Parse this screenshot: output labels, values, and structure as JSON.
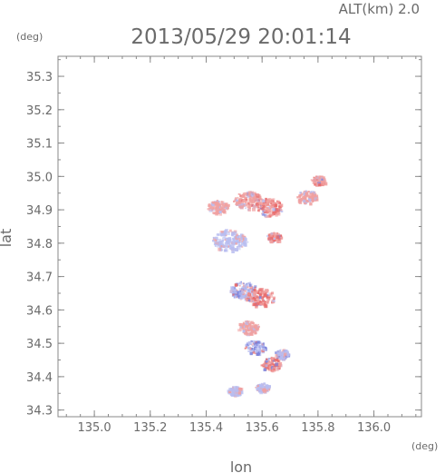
{
  "chart_data": {
    "type": "scatter",
    "title": "2013/05/29 20:01:14",
    "subtitle": "ALT(km) 2.0",
    "xlabel": "lon",
    "ylabel": "lat",
    "x_unit": "(deg)",
    "y_unit": "(deg)",
    "xlim": [
      134.87,
      136.17
    ],
    "ylim": [
      34.28,
      35.36
    ],
    "xticks": [
      "135.0",
      "135.2",
      "135.4",
      "135.6",
      "135.8",
      "136.0"
    ],
    "yticks": [
      "34.3",
      "34.4",
      "34.5",
      "34.6",
      "34.7",
      "34.8",
      "34.9",
      "35.0",
      "35.1",
      "35.2",
      "35.3"
    ],
    "grid": false,
    "colors": {
      "positive": "#f0a0a0",
      "negative": "#b8bdf0",
      "strong_positive": "#e86a6a",
      "strong_negative": "#7c84dc"
    },
    "clusters": [
      {
        "lon": 135.48,
        "lat": 34.81,
        "value": -0.6,
        "spread": 0.05
      },
      {
        "lon": 135.44,
        "lat": 34.91,
        "value": 0.3,
        "spread": 0.03
      },
      {
        "lon": 135.55,
        "lat": 34.93,
        "value": 0.7,
        "spread": 0.04
      },
      {
        "lon": 135.62,
        "lat": 34.91,
        "value": 0.8,
        "spread": 0.04
      },
      {
        "lon": 135.76,
        "lat": 34.94,
        "value": 0.6,
        "spread": 0.03
      },
      {
        "lon": 135.8,
        "lat": 34.99,
        "value": 0.7,
        "spread": 0.02
      },
      {
        "lon": 135.64,
        "lat": 34.82,
        "value": 0.9,
        "spread": 0.02
      },
      {
        "lon": 135.53,
        "lat": 34.66,
        "value": -0.8,
        "spread": 0.04
      },
      {
        "lon": 135.59,
        "lat": 34.64,
        "value": 0.9,
        "spread": 0.04
      },
      {
        "lon": 135.55,
        "lat": 34.55,
        "value": 0.6,
        "spread": 0.03
      },
      {
        "lon": 135.57,
        "lat": 34.49,
        "value": -0.9,
        "spread": 0.03
      },
      {
        "lon": 135.63,
        "lat": 34.44,
        "value": 1.0,
        "spread": 0.03
      },
      {
        "lon": 135.67,
        "lat": 34.47,
        "value": -0.7,
        "spread": 0.02
      },
      {
        "lon": 135.5,
        "lat": 34.36,
        "value": -0.3,
        "spread": 0.02
      },
      {
        "lon": 135.6,
        "lat": 34.37,
        "value": -0.2,
        "spread": 0.02
      }
    ]
  }
}
